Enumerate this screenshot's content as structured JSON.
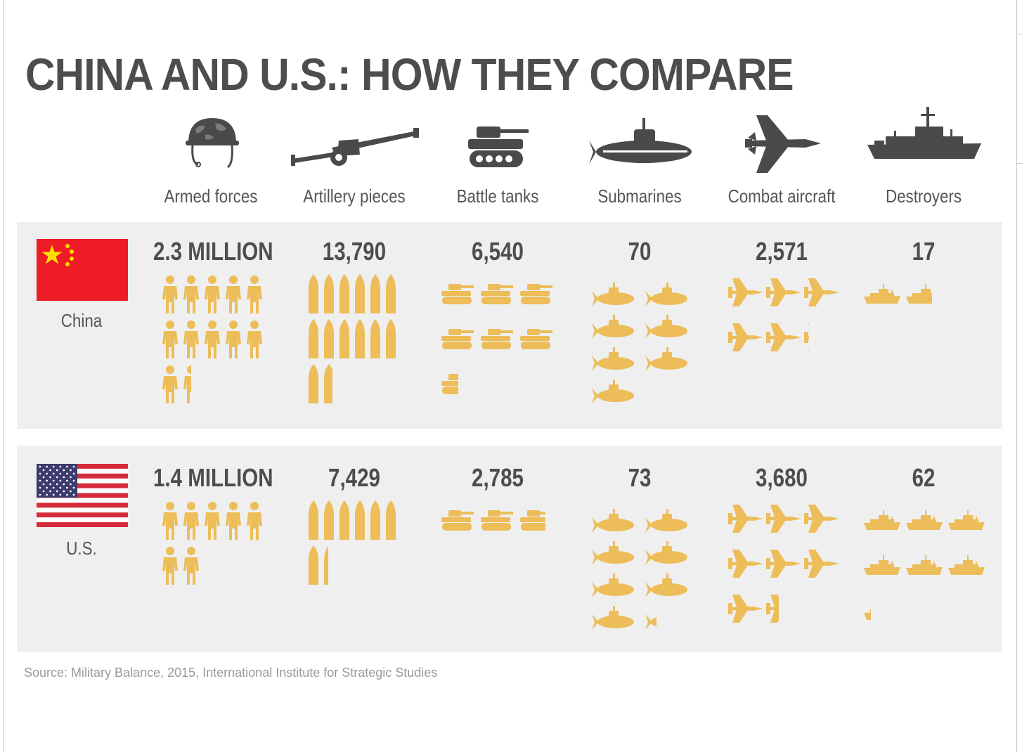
{
  "title": "CHINA AND U.S.: HOW THEY COMPARE",
  "source": "Source: Military Balance, 2015, International Institute for Strategic Studies",
  "colors": {
    "title": "#4d4d4d",
    "pictogram": "#ecbd59",
    "category_icon": "#4a4a4a",
    "panel": "#efefef"
  },
  "categories": [
    {
      "label": "Armed forces",
      "icon": "helmet-icon"
    },
    {
      "label": "Artillery pieces",
      "icon": "artillery-icon"
    },
    {
      "label": "Battle tanks",
      "icon": "tank-icon"
    },
    {
      "label": "Submarines",
      "icon": "submarine-icon"
    },
    {
      "label": "Combat aircraft",
      "icon": "jet-icon"
    },
    {
      "label": "Destroyers",
      "icon": "ship-icon"
    }
  ],
  "countries": [
    {
      "name": "China",
      "flag": "china-flag-icon",
      "values": [
        "2.3 MILLION",
        "13,790",
        "6,540",
        "70",
        "2,571",
        "17"
      ]
    },
    {
      "name": "U.S.",
      "flag": "us-flag-icon",
      "values": [
        "1.4 MILLION",
        "7,429",
        "2,785",
        "73",
        "3,680",
        "62"
      ]
    }
  ],
  "chart_data": {
    "type": "table",
    "title": "CHINA AND U.S.: HOW THEY COMPARE",
    "categories": [
      "Armed forces",
      "Artillery pieces",
      "Battle tanks",
      "Submarines",
      "Combat aircraft",
      "Destroyers"
    ],
    "series": [
      {
        "name": "China",
        "values": [
          2300000,
          13790,
          6540,
          70,
          2571,
          17
        ]
      },
      {
        "name": "U.S.",
        "values": [
          1400000,
          7429,
          2785,
          73,
          3680,
          62
        ]
      }
    ],
    "pictogram_units": [
      200000,
      1000,
      1000,
      10,
      500,
      10
    ],
    "pictogram_counts": {
      "China": [
        11.5,
        13.79,
        6.54,
        7.0,
        5.14,
        1.7
      ],
      "U.S.": [
        7.0,
        7.43,
        2.79,
        7.3,
        7.36,
        6.2
      ]
    }
  }
}
